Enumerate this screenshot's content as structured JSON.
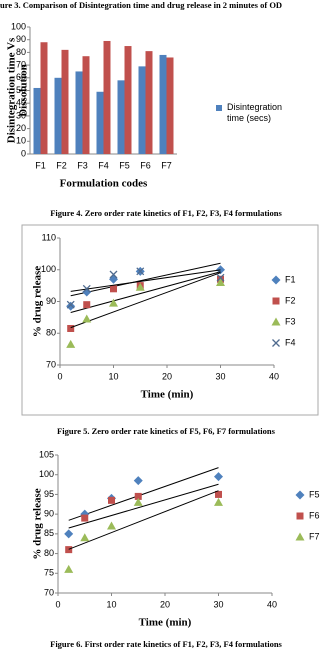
{
  "chart_data": [
    {
      "type": "bar",
      "title": "ure 3. Comparison of Disintegration time and drug release in 2 minutes of OD",
      "ylabel": [
        "Disintegration time Vs",
        "Dissolution"
      ],
      "xlabel": "Formulation codes",
      "categories": [
        "F1",
        "F2",
        "F3",
        "F4",
        "F5",
        "F6",
        "F7"
      ],
      "series": [
        {
          "name": "Disintegration time (secs)",
          "color": "#4f81bd",
          "values": [
            52,
            60,
            65,
            49,
            58,
            69,
            78
          ]
        },
        {
          "color": "#c0504d",
          "values": [
            88,
            82,
            77,
            89,
            85,
            81,
            76
          ]
        }
      ],
      "ylim": [
        0,
        100
      ],
      "yticks": [
        0,
        10,
        20,
        30,
        40,
        50,
        60,
        70,
        80,
        90,
        100
      ],
      "grid": false,
      "legend": "right"
    },
    {
      "type": "scatter",
      "title": "Figure 4. Zero order rate kinetics of F1, F2, F3, F4 formulations",
      "ylabel": [
        "% drug release"
      ],
      "xlabel": "Time (min)",
      "x": [
        2,
        5,
        10,
        15,
        30
      ],
      "series": [
        {
          "name": "F1",
          "color": "#4f81bd",
          "marker": "diamond",
          "values": [
            88.5,
            93,
            97,
            99.5,
            100
          ]
        },
        {
          "name": "F2",
          "color": "#c0504d",
          "marker": "square",
          "values": [
            81.5,
            89,
            94,
            95,
            97
          ]
        },
        {
          "name": "F3",
          "color": "#9bbb59",
          "marker": "triangle",
          "values": [
            76.5,
            84.5,
            89.5,
            94.5,
            96
          ]
        },
        {
          "name": "F4",
          "color": "#4f6b8f",
          "marker": "x",
          "values": [
            89,
            94,
            98.5,
            99.5,
            97.5
          ]
        }
      ],
      "xlim": [
        0,
        40
      ],
      "xticks": [
        0,
        10,
        20,
        30,
        40
      ],
      "ylim": [
        70,
        110
      ],
      "yticks": [
        70,
        80,
        90,
        100,
        110
      ],
      "trendline": "linear",
      "grid": false,
      "legend": "right"
    },
    {
      "type": "scatter",
      "title": "Figure 5. Zero order rate kinetics of F5, F6, F7 formulations",
      "ylabel": [
        "% drug release"
      ],
      "xlabel": "Time (min)",
      "x": [
        2,
        5,
        10,
        15,
        30
      ],
      "series": [
        {
          "name": "F5",
          "color": "#4f81bd",
          "marker": "diamond",
          "values": [
            85,
            90,
            94,
            98.5,
            99.5
          ]
        },
        {
          "name": "F6",
          "color": "#c0504d",
          "marker": "square",
          "values": [
            81,
            89,
            93.5,
            94.5,
            95
          ]
        },
        {
          "name": "F7",
          "color": "#9bbb59",
          "marker": "triangle",
          "values": [
            76,
            84,
            87,
            93,
            93
          ]
        }
      ],
      "xlim": [
        0,
        40
      ],
      "xticks": [
        0,
        10,
        20,
        30,
        40
      ],
      "ylim": [
        70,
        105
      ],
      "yticks": [
        70,
        75,
        80,
        85,
        90,
        95,
        100,
        105
      ],
      "trendline": "linear",
      "grid": false,
      "legend": "right"
    }
  ],
  "caption": "Figure 6. First order rate kinetics of F1, F2, F3, F4 formulations"
}
